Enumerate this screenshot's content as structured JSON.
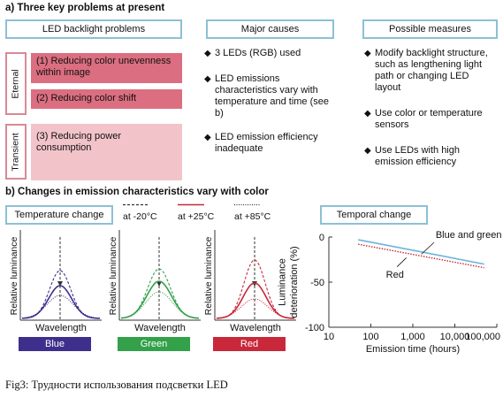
{
  "section_a": {
    "heading": "a) Three key problems at present",
    "problems_header": "LED backlight problems",
    "causes_header": "Major causes",
    "measures_header": "Possible measures",
    "eternal_label": "Eternal",
    "transient_label": "Transient",
    "problems": [
      "(1) Reducing color unevenness within image",
      "(2) Reducing color shift",
      "(3) Reducing power consumption"
    ],
    "causes": [
      "3 LEDs (RGB) used",
      "LED emissions characteristics vary with temperature and time (see b)",
      "LED emission efficiency inadequate"
    ],
    "measures": [
      "Modify backlight structure, such as lengthening light path or changing LED layout",
      "Use color or temperature sensors",
      "Use LEDs with high emission efficiency"
    ],
    "colors": {
      "box_border": "#8cc0d6",
      "eternal_fill": "#db6e80",
      "transient_fill": "#f2c4c9",
      "side_border": "#d88a97"
    }
  },
  "section_b": {
    "heading": "b) Changes in emission characteristics vary with color",
    "temp_header": "Temperature change",
    "temporal_header": "Temporal change",
    "legend": [
      "at -20°C",
      "at +25°C",
      "at +85°C"
    ],
    "ylabel": "Relative luminance",
    "xlabel": "Wavelength",
    "panels": [
      {
        "name": "Blue",
        "color": "#3f2f8c"
      },
      {
        "name": "Green",
        "color": "#33a04a"
      },
      {
        "name": "Red",
        "color": "#c8283a"
      }
    ]
  },
  "chart_data": {
    "type": "line",
    "xlabel": "Emission time (hours)",
    "ylabel": "Luminance deterioration (%)",
    "xscale": "log",
    "xlim": [
      10,
      100000
    ],
    "ylim": [
      -100,
      0
    ],
    "x_ticks": [
      "10",
      "100",
      "1,000",
      "10,000",
      "100,000"
    ],
    "y_ticks": [
      "0",
      "-50",
      "-100"
    ],
    "series": [
      {
        "name": "Blue and green",
        "style": "solid",
        "color": "#6ab4dc",
        "x": [
          50,
          50000
        ],
        "y": [
          -3,
          -30
        ]
      },
      {
        "name": "Red",
        "style": "dotted",
        "color": "#c8283a",
        "x": [
          50,
          50000
        ],
        "y": [
          -8,
          -34
        ]
      }
    ]
  },
  "caption": "Fig3: Трудности использования подсветки LED"
}
